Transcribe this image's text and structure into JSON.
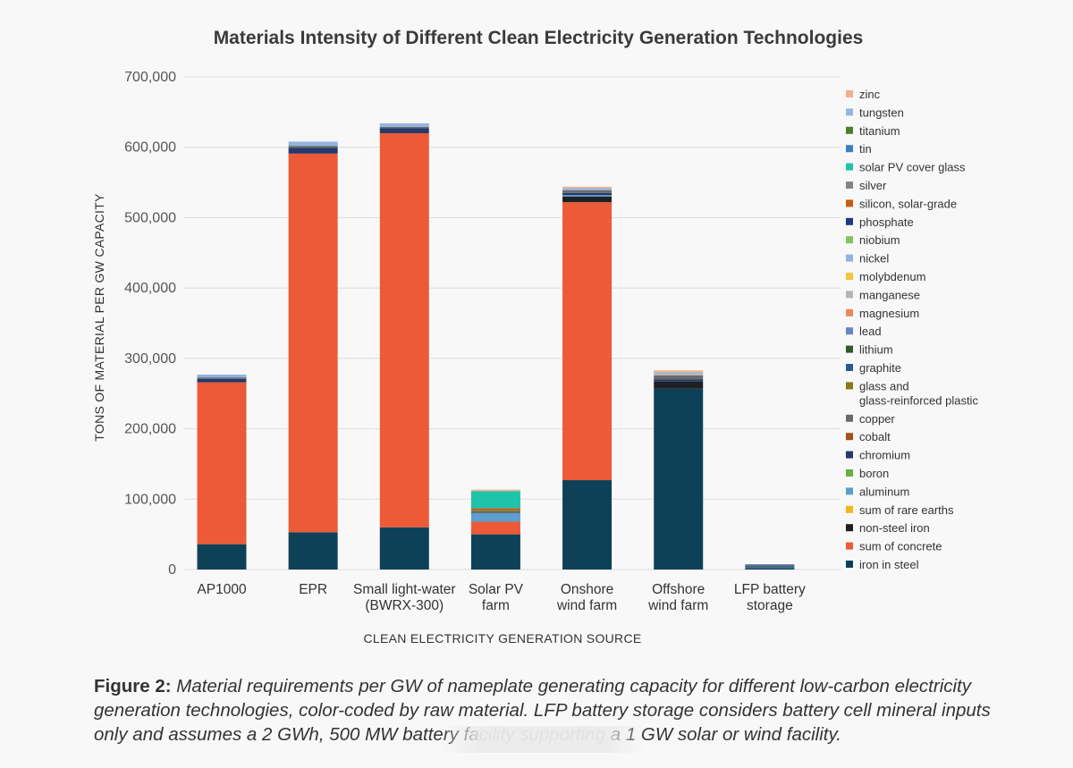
{
  "chart_data": {
    "type": "bar",
    "stacked": true,
    "title": "Materials Intensity of Different Clean Electricity Generation Technologies",
    "xlabel": "CLEAN ELECTRICITY GENERATION SOURCE",
    "ylabel": "TONS OF MATERIAL PER GW CAPACITY",
    "ylim": [
      0,
      700000
    ],
    "yticks": [
      0,
      100000,
      200000,
      300000,
      400000,
      500000,
      600000,
      700000
    ],
    "ytick_labels": [
      "0",
      "100,000",
      "200,000",
      "300,000",
      "400,000",
      "500,000",
      "600,000",
      "700,000"
    ],
    "grid": true,
    "legend_position": "right",
    "categories": [
      [
        "AP1000"
      ],
      [
        "EPR"
      ],
      [
        "Small light-water",
        "(BWRX-300)"
      ],
      [
        "Solar PV",
        "farm"
      ],
      [
        "Onshore",
        "wind farm"
      ],
      [
        "Offshore",
        "wind farm"
      ],
      [
        "LFP battery",
        "storage"
      ]
    ],
    "series": [
      {
        "name": "iron in steel",
        "color": "#0e4158",
        "values": [
          36000,
          53000,
          60000,
          50000,
          127000,
          257000,
          2000
        ]
      },
      {
        "name": "sum of concrete",
        "color": "#ec5a37",
        "values": [
          230000,
          538000,
          560000,
          18000,
          395000,
          0,
          0
        ]
      },
      {
        "name": "non-steel iron",
        "color": "#1e2124",
        "values": [
          0,
          0,
          0,
          0,
          8000,
          10000,
          0
        ]
      },
      {
        "name": "sum of rare earths",
        "color": "#f0b81b",
        "values": [
          0,
          0,
          0,
          0,
          0,
          0,
          0
        ]
      },
      {
        "name": "aluminum",
        "color": "#5a9fcf",
        "values": [
          0,
          0,
          0,
          12000,
          2000,
          0,
          800
        ]
      },
      {
        "name": "boron",
        "color": "#6dae3f",
        "values": [
          0,
          0,
          0,
          0,
          0,
          0,
          0
        ]
      },
      {
        "name": "chromium",
        "color": "#233a6b",
        "values": [
          5000,
          8000,
          7000,
          0,
          3000,
          3000,
          0
        ]
      },
      {
        "name": "cobalt",
        "color": "#a6501b",
        "values": [
          0,
          0,
          0,
          0,
          0,
          0,
          0
        ]
      },
      {
        "name": "copper",
        "color": "#6b6b6b",
        "values": [
          2000,
          3000,
          2000,
          3000,
          4000,
          6000,
          400
        ]
      },
      {
        "name": "glass and glass-reinforced plastic",
        "label_lines": [
          "glass and",
          "glass-reinforced plastic"
        ],
        "color": "#857a16",
        "values": [
          0,
          0,
          0,
          2000,
          0,
          0,
          0
        ]
      },
      {
        "name": "graphite",
        "color": "#2b5b97",
        "values": [
          0,
          0,
          0,
          0,
          0,
          0,
          1800
        ]
      },
      {
        "name": "lithium",
        "color": "#2d5a26",
        "values": [
          0,
          0,
          0,
          0,
          0,
          0,
          300
        ]
      },
      {
        "name": "lead",
        "color": "#6787c3",
        "values": [
          0,
          0,
          0,
          0,
          0,
          0,
          0
        ]
      },
      {
        "name": "magnesium",
        "color": "#ee8858",
        "values": [
          0,
          0,
          0,
          0,
          0,
          0,
          0
        ]
      },
      {
        "name": "manganese",
        "color": "#b5b5b5",
        "values": [
          0,
          0,
          0,
          0,
          0,
          2000,
          300
        ]
      },
      {
        "name": "molybdenum",
        "color": "#f5c33b",
        "values": [
          0,
          0,
          0,
          0,
          0,
          0,
          0
        ]
      },
      {
        "name": "nickel",
        "color": "#93b3de",
        "values": [
          4000,
          6000,
          5000,
          0,
          3000,
          2000,
          0
        ]
      },
      {
        "name": "niobium",
        "color": "#86c15a",
        "values": [
          0,
          0,
          0,
          0,
          0,
          0,
          0
        ]
      },
      {
        "name": "phosphate",
        "color": "#1f3a83",
        "values": [
          0,
          0,
          0,
          0,
          0,
          0,
          1500
        ]
      },
      {
        "name": "silicon, solar-grade",
        "color": "#c55d12",
        "values": [
          0,
          0,
          0,
          2000,
          0,
          0,
          0
        ]
      },
      {
        "name": "silver",
        "color": "#848484",
        "values": [
          0,
          0,
          0,
          500,
          0,
          0,
          0
        ]
      },
      {
        "name": "solar PV cover glass",
        "color": "#1ec3a9",
        "values": [
          0,
          0,
          0,
          24000,
          0,
          0,
          0
        ]
      },
      {
        "name": "tin",
        "color": "#3a80c2",
        "values": [
          0,
          0,
          0,
          0,
          0,
          0,
          0
        ]
      },
      {
        "name": "tungsten",
        "color": "#98b5e2",
        "values": [
          0,
          0,
          0,
          0,
          0,
          0,
          0
        ]
      },
      {
        "name": "titanium",
        "color": "#4b7f2c",
        "values": [
          0,
          0,
          0,
          0,
          0,
          0,
          0
        ]
      },
      {
        "name": "zinc",
        "color": "#f0b08d",
        "values": [
          0,
          0,
          0,
          2000,
          2000,
          3000,
          0
        ]
      }
    ],
    "legend_order": [
      "zinc",
      "tungsten",
      "titanium",
      "tin",
      "solar PV cover glass",
      "silver",
      "silicon, solar-grade",
      "phosphate",
      "niobium",
      "nickel",
      "molybdenum",
      "manganese",
      "magnesium",
      "lead",
      "lithium",
      "graphite",
      "glass and glass-reinforced plastic",
      "copper",
      "cobalt",
      "chromium",
      "boron",
      "aluminum",
      "sum of rare earths",
      "non-steel iron",
      "sum of concrete",
      "iron in steel"
    ]
  },
  "caption": {
    "figure_label": "Figure 2:",
    "text": " Material requirements per GW of nameplate generating capacity for different low-carbon electricity generation technologies, color-coded by raw material. LFP battery storage considers battery cell mineral inputs only and assumes a 2 GWh, 500 MW battery facility supporting a 1 GW solar or wind facility."
  }
}
